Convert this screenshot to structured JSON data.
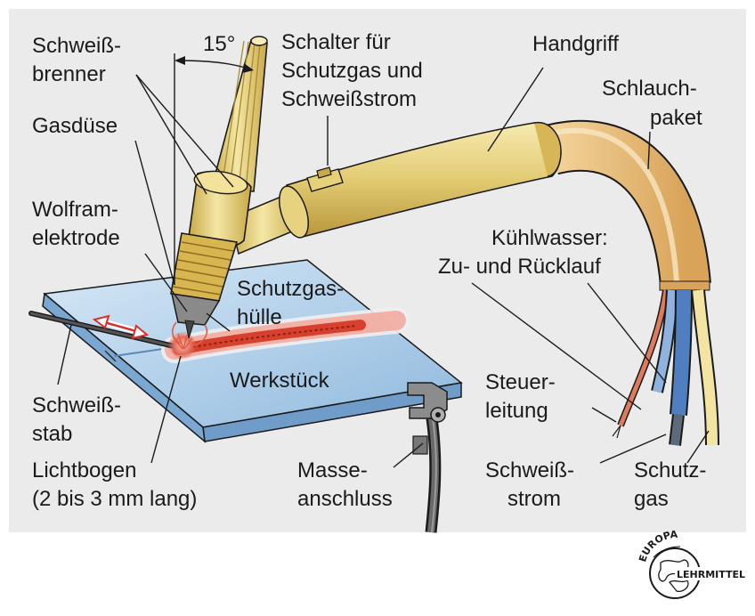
{
  "labels": {
    "angle": "15°",
    "schweissbrenner_1": "Schweiß-",
    "schweissbrenner_2": "brenner",
    "schalter_1": "Schalter für",
    "schalter_2": "Schutzgas und",
    "schalter_3": "Schweißstrom",
    "handgriff": "Handgriff",
    "schlauch_1": "Schlauch-",
    "schlauch_2": "paket",
    "gasduese": "Gasdüse",
    "wolfram_1": "Wolfram-",
    "wolfram_2": "elektrode",
    "kuehl_1": "Kühlwasser:",
    "kuehl_2": "Zu- und Rücklauf",
    "schutzgashuelle_1": "Schutzgas-",
    "schutzgashuelle_2": "hülle",
    "werkstueck": "Werkstück",
    "steuer_1": "Steuer-",
    "steuer_2": "leitung",
    "schweissstab_1": "Schweiß-",
    "schweissstab_2": "stab",
    "lichtbogen_1": "Lichtbogen",
    "lichtbogen_2": "(2 bis 3 mm lang)",
    "masse_1": "Masse-",
    "masse_2": "anschluss",
    "strom_1": "Schweiß-",
    "strom_2": "strom",
    "gas_1": "Schutz-",
    "gas_2": "gas"
  },
  "logo": {
    "top": "EUROPA",
    "bottom": "LEHRMITTEL"
  },
  "colors": {
    "background": "#ebebeb",
    "brass": "#e6d17a",
    "workpiece": "#aed0ec",
    "hose": "#e9c07d",
    "weld": "#d94a32",
    "blue_hose": "#5a88c4"
  }
}
